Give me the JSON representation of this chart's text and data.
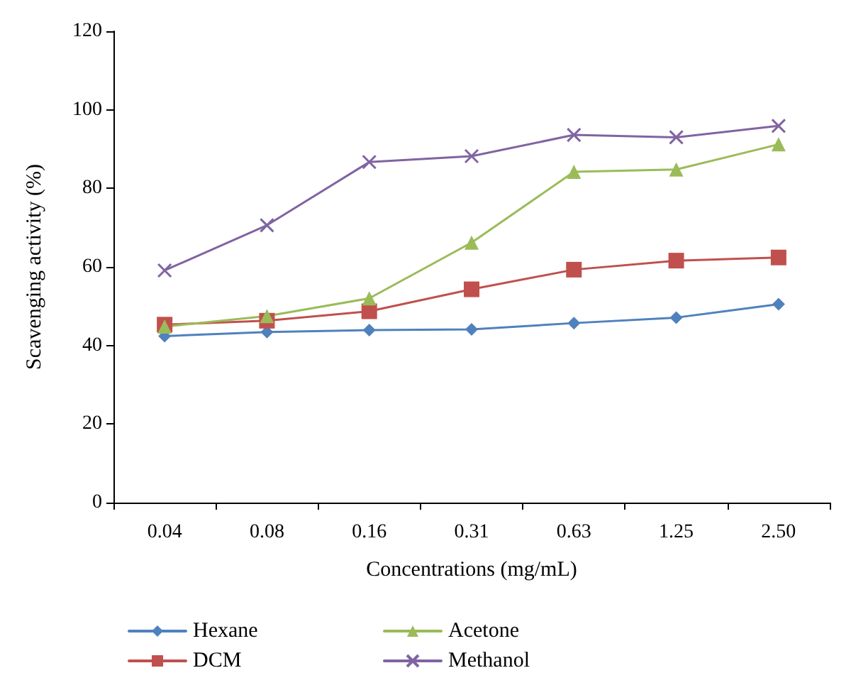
{
  "chart_data": {
    "type": "line",
    "xlabel": "Concentrations (mg/mL)",
    "ylabel": "Scavenging activity (%)",
    "categories": [
      "0.04",
      "0.08",
      "0.16",
      "0.31",
      "0.63",
      "1.25",
      "2.50"
    ],
    "series": [
      {
        "name": "Hexane",
        "color": "#4f81bd",
        "marker": "diamond",
        "values": [
          42.4,
          43.4,
          43.9,
          44.1,
          45.7,
          47.1,
          50.5
        ]
      },
      {
        "name": "DCM",
        "color": "#c0504d",
        "marker": "square",
        "values": [
          45.3,
          46.3,
          48.7,
          54.3,
          59.3,
          61.6,
          62.4
        ]
      },
      {
        "name": "Acetone",
        "color": "#9bbb59",
        "marker": "triangle",
        "values": [
          44.8,
          47.5,
          52.0,
          66.2,
          84.2,
          84.8,
          91.2
        ]
      },
      {
        "name": "Methanol",
        "color": "#8064a2",
        "marker": "cross",
        "values": [
          59.1,
          70.6,
          86.7,
          88.2,
          93.6,
          93.0,
          95.9
        ]
      }
    ],
    "ylim": [
      0,
      120
    ],
    "yticks": [
      0,
      20,
      40,
      60,
      80,
      100,
      120
    ],
    "grid": false,
    "legend": "bottom",
    "line_style": "solid"
  }
}
